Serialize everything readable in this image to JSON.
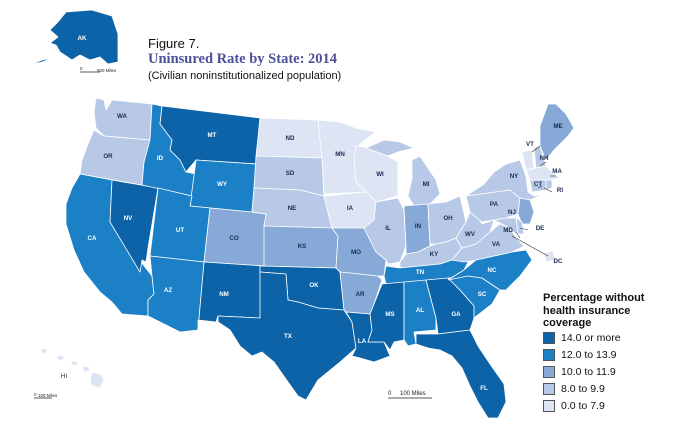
{
  "figure": {
    "number": "Figure 7.",
    "title": "Uninsured Rate by State: 2014",
    "subtitle": "(Civilian noninstitutionalized population)"
  },
  "legend": {
    "title": "Percentage without health insurance coverage",
    "items": [
      {
        "label": "14.0 or more",
        "color": "#0c63a7"
      },
      {
        "label": "12.0 to 13.9",
        "color": "#1c80c6"
      },
      {
        "label": "10.0 to 11.9",
        "color": "#86a9d8"
      },
      {
        "label": "8.0 to 9.9",
        "color": "#b8c9e7"
      },
      {
        "label": "0.0 to 7.9",
        "color": "#dde4f3"
      }
    ]
  },
  "scales": {
    "alaska": "500 Miles",
    "hawaii": "100 Miles",
    "main": "100 Miles",
    "zero": "0"
  },
  "states": [
    {
      "code": "WA",
      "class": 3
    },
    {
      "code": "OR",
      "class": 3
    },
    {
      "code": "CA",
      "class": 1
    },
    {
      "code": "NV",
      "class": 0
    },
    {
      "code": "ID",
      "class": 1
    },
    {
      "code": "MT",
      "class": 0
    },
    {
      "code": "WY",
      "class": 1
    },
    {
      "code": "UT",
      "class": 1
    },
    {
      "code": "AZ",
      "class": 1
    },
    {
      "code": "CO",
      "class": 2
    },
    {
      "code": "NM",
      "class": 0
    },
    {
      "code": "ND",
      "class": 4
    },
    {
      "code": "SD",
      "class": 3
    },
    {
      "code": "NE",
      "class": 3
    },
    {
      "code": "KS",
      "class": 2
    },
    {
      "code": "OK",
      "class": 0
    },
    {
      "code": "TX",
      "class": 0
    },
    {
      "code": "MN",
      "class": 4
    },
    {
      "code": "IA",
      "class": 4
    },
    {
      "code": "MO",
      "class": 2
    },
    {
      "code": "AR",
      "class": 2
    },
    {
      "code": "LA",
      "class": 0
    },
    {
      "code": "WI",
      "class": 4
    },
    {
      "code": "IL",
      "class": 3
    },
    {
      "code": "MI",
      "class": 3
    },
    {
      "code": "IN",
      "class": 2
    },
    {
      "code": "OH",
      "class": 3
    },
    {
      "code": "KY",
      "class": 3
    },
    {
      "code": "TN",
      "class": 1
    },
    {
      "code": "MS",
      "class": 0
    },
    {
      "code": "AL",
      "class": 1
    },
    {
      "code": "GA",
      "class": 0
    },
    {
      "code": "FL",
      "class": 0
    },
    {
      "code": "SC",
      "class": 1
    },
    {
      "code": "NC",
      "class": 1
    },
    {
      "code": "VA",
      "class": 3
    },
    {
      "code": "WV",
      "class": 3
    },
    {
      "code": "PA",
      "class": 3
    },
    {
      "code": "NY",
      "class": 3
    },
    {
      "code": "VT",
      "class": 4
    },
    {
      "code": "NH",
      "class": 3
    },
    {
      "code": "ME",
      "class": 2
    },
    {
      "code": "MA",
      "class": 4
    },
    {
      "code": "CT",
      "class": 3
    },
    {
      "code": "RI",
      "class": 3
    },
    {
      "code": "NJ",
      "class": 2
    },
    {
      "code": "DE",
      "class": 3
    },
    {
      "code": "MD",
      "class": 3
    },
    {
      "code": "DC",
      "class": 4
    },
    {
      "code": "AK",
      "class": 0
    },
    {
      "code": "HI",
      "class": 4
    }
  ]
}
